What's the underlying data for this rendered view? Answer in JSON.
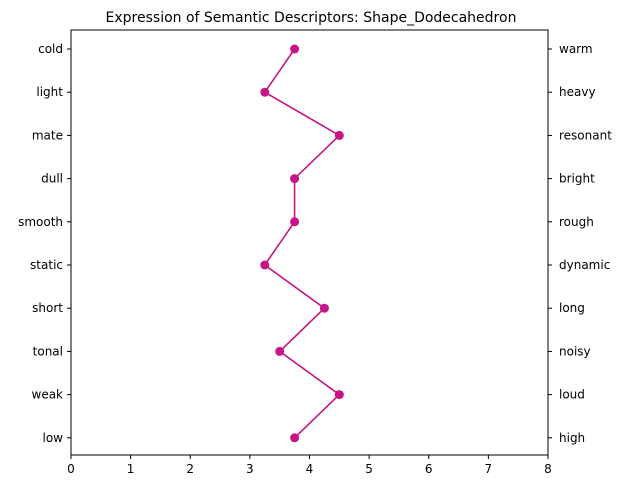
{
  "chart_data": {
    "type": "line",
    "title": "Expression of Semantic Descriptors: Shape_Dodecahedron",
    "left_labels": [
      "cold",
      "light",
      "mate",
      "dull",
      "smooth",
      "static",
      "short",
      "tonal",
      "weak",
      "low"
    ],
    "right_labels": [
      "warm",
      "heavy",
      "resonant",
      "bright",
      "rough",
      "dynamic",
      "long",
      "noisy",
      "loud",
      "high"
    ],
    "values": [
      3.75,
      3.25,
      4.5,
      3.75,
      3.75,
      3.25,
      4.25,
      3.5,
      4.5,
      3.75
    ],
    "xlim": [
      0,
      8
    ],
    "xticks": [
      0,
      1,
      2,
      3,
      4,
      5,
      6,
      7,
      8
    ],
    "xlabel": "",
    "ylabel": "",
    "grid": false,
    "series_color": "#c71585"
  }
}
